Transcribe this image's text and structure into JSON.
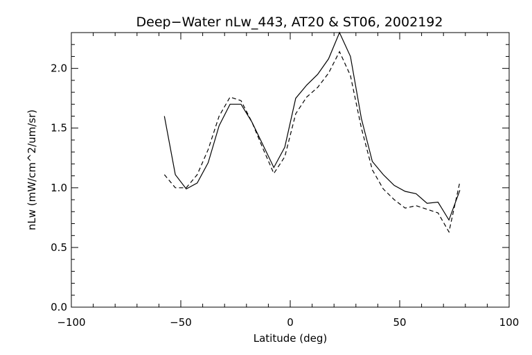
{
  "chart_data": {
    "type": "line",
    "title": "Deep−Water nLw_443, AT20 & ST06, 2002192",
    "xlabel": "Latitude (deg)",
    "ylabel": "nLw (mW/cm^2/um/sr)",
    "xlim": [
      -100,
      100
    ],
    "ylim": [
      0,
      2.3
    ],
    "x_ticks": [
      -100,
      -50,
      0,
      50,
      100
    ],
    "x_tick_labels": [
      "−100",
      "−50",
      "0",
      "50",
      "100"
    ],
    "y_ticks": [
      0.0,
      0.5,
      1.0,
      1.5,
      2.0
    ],
    "y_tick_labels": [
      "0.0",
      "0.5",
      "1.0",
      "1.5",
      "2.0"
    ],
    "grid": false,
    "legend": "none",
    "series": [
      {
        "style": "solid",
        "x": [
          -57.5,
          -52.5,
          -47.5,
          -42.5,
          -37.5,
          -32.5,
          -27.5,
          -22.5,
          -17.5,
          -12.5,
          -7.5,
          -2.5,
          2.5,
          7.5,
          12.5,
          17.5,
          22.5,
          27.5,
          32.5,
          37.5,
          42.5,
          47.5,
          52.5,
          57.5,
          62.5,
          67.5,
          72.5,
          77.5
        ],
        "y": [
          1.6,
          1.11,
          0.99,
          1.04,
          1.21,
          1.52,
          1.7,
          1.7,
          1.55,
          1.36,
          1.17,
          1.34,
          1.75,
          1.86,
          1.95,
          2.08,
          2.3,
          2.1,
          1.58,
          1.22,
          1.11,
          1.02,
          0.97,
          0.95,
          0.87,
          0.88,
          0.73,
          0.98
        ]
      },
      {
        "style": "dashed",
        "x": [
          -57.5,
          -52.5,
          -47.5,
          -42.5,
          -37.5,
          -32.5,
          -27.5,
          -22.5,
          -17.5,
          -12.5,
          -7.5,
          -2.5,
          2.5,
          7.5,
          12.5,
          17.5,
          22.5,
          27.5,
          32.5,
          37.5,
          42.5,
          47.5,
          52.5,
          57.5,
          62.5,
          67.5,
          72.5,
          77.5
        ],
        "y": [
          1.11,
          1.0,
          1.0,
          1.11,
          1.32,
          1.6,
          1.76,
          1.73,
          1.55,
          1.33,
          1.12,
          1.26,
          1.62,
          1.76,
          1.84,
          1.96,
          2.14,
          1.94,
          1.5,
          1.15,
          0.99,
          0.9,
          0.83,
          0.85,
          0.82,
          0.79,
          0.63,
          1.05
        ]
      }
    ]
  }
}
